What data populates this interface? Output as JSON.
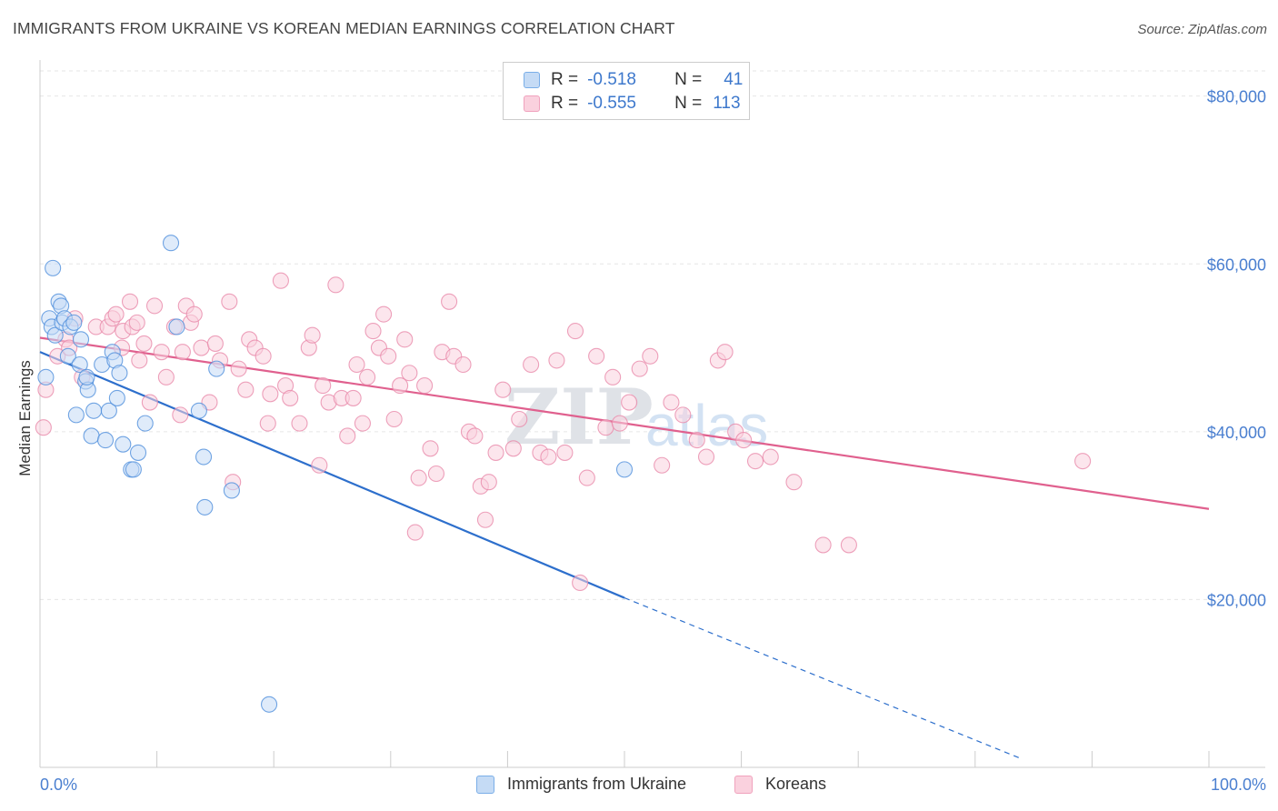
{
  "title": "IMMIGRANTS FROM UKRAINE VS KOREAN MEDIAN EARNINGS CORRELATION CHART",
  "source": "Source: ZipAtlas.com",
  "watermark": {
    "zip": "ZIP",
    "atlas": "atlas"
  },
  "legend": {
    "rows": [
      {
        "r_label": "R =",
        "r_value": "-0.518",
        "n_label": "N =",
        "n_value": "41",
        "color": "#7aaee8",
        "fill": "#c5dbf5"
      },
      {
        "r_label": "R =",
        "r_value": "-0.555",
        "n_label": "N =",
        "n_value": "113",
        "color": "#f0a2bd",
        "fill": "#fad1de"
      }
    ]
  },
  "bottom_legend": {
    "ukraine": "Immigrants from Ukraine",
    "koreans": "Koreans"
  },
  "chart_data": {
    "type": "scatter",
    "xlabel": "",
    "ylabel": "Median Earnings",
    "xlim": [
      0,
      100
    ],
    "ylim": [
      0,
      83000
    ],
    "x_tick_labels": [
      "0.0%",
      "100.0%"
    ],
    "y_ticks": [
      20000,
      40000,
      60000,
      80000
    ],
    "y_tick_labels": [
      "$20,000",
      "$40,000",
      "$60,000",
      "$80,000"
    ],
    "grid": true,
    "legend_position": "top-center",
    "series": [
      {
        "name": "Immigrants from Ukraine",
        "color": "#4f8fdc",
        "fill": "#c5dbf5",
        "trend": {
          "x0": 0,
          "y0": 49500,
          "x1": 50,
          "y1": 20200,
          "dash_to_x": 84,
          "dash_to_y": 1000,
          "color": "#2d6fcc"
        },
        "points": [
          [
            0.5,
            46500
          ],
          [
            0.8,
            53500
          ],
          [
            1.0,
            52500
          ],
          [
            1.1,
            59500
          ],
          [
            1.3,
            51500
          ],
          [
            1.6,
            55500
          ],
          [
            1.8,
            55000
          ],
          [
            1.9,
            53000
          ],
          [
            2.1,
            53500
          ],
          [
            2.4,
            49000
          ],
          [
            2.6,
            52500
          ],
          [
            2.9,
            53000
          ],
          [
            3.1,
            42000
          ],
          [
            3.4,
            48000
          ],
          [
            3.5,
            51000
          ],
          [
            3.9,
            46000
          ],
          [
            4.1,
            45000
          ],
          [
            4.4,
            39500
          ],
          [
            4.6,
            42500
          ],
          [
            5.3,
            48000
          ],
          [
            5.6,
            39000
          ],
          [
            5.9,
            42500
          ],
          [
            6.2,
            49500
          ],
          [
            6.4,
            48500
          ],
          [
            6.6,
            44000
          ],
          [
            6.8,
            47000
          ],
          [
            7.1,
            38500
          ],
          [
            7.8,
            35500
          ],
          [
            8.0,
            35500
          ],
          [
            8.4,
            37500
          ],
          [
            9.0,
            41000
          ],
          [
            11.2,
            62500
          ],
          [
            11.7,
            52500
          ],
          [
            13.6,
            42500
          ],
          [
            14.0,
            37000
          ],
          [
            14.1,
            31000
          ],
          [
            15.1,
            47500
          ],
          [
            16.4,
            33000
          ],
          [
            19.6,
            7500
          ],
          [
            50.0,
            35500
          ],
          [
            4.0,
            46500
          ]
        ]
      },
      {
        "name": "Koreans",
        "color": "#e88aaa",
        "fill": "#fad1de",
        "trend": {
          "x0": 0,
          "y0": 51200,
          "x1": 100,
          "y1": 30800,
          "color": "#e0608e"
        },
        "points": [
          [
            0.3,
            40500
          ],
          [
            0.5,
            45000
          ],
          [
            1.5,
            49000
          ],
          [
            2.2,
            51000
          ],
          [
            2.5,
            50000
          ],
          [
            3.0,
            53500
          ],
          [
            3.6,
            46500
          ],
          [
            4.8,
            52500
          ],
          [
            5.8,
            52500
          ],
          [
            6.2,
            53500
          ],
          [
            6.5,
            54000
          ],
          [
            7.0,
            50000
          ],
          [
            7.1,
            52000
          ],
          [
            7.7,
            55500
          ],
          [
            7.9,
            52500
          ],
          [
            8.3,
            53000
          ],
          [
            8.5,
            48500
          ],
          [
            8.9,
            50500
          ],
          [
            9.4,
            43500
          ],
          [
            9.8,
            55000
          ],
          [
            10.4,
            49500
          ],
          [
            10.8,
            46500
          ],
          [
            11.5,
            52500
          ],
          [
            12.0,
            42000
          ],
          [
            12.2,
            49500
          ],
          [
            12.5,
            55000
          ],
          [
            12.9,
            53000
          ],
          [
            13.2,
            54000
          ],
          [
            13.8,
            50000
          ],
          [
            14.5,
            43500
          ],
          [
            15.0,
            50500
          ],
          [
            15.4,
            48500
          ],
          [
            16.2,
            55500
          ],
          [
            16.5,
            34000
          ],
          [
            17.0,
            47500
          ],
          [
            17.6,
            45000
          ],
          [
            17.9,
            51000
          ],
          [
            18.4,
            50000
          ],
          [
            19.1,
            49000
          ],
          [
            19.5,
            41000
          ],
          [
            19.7,
            44500
          ],
          [
            20.6,
            58000
          ],
          [
            21.0,
            45500
          ],
          [
            21.4,
            44000
          ],
          [
            22.2,
            41000
          ],
          [
            23.0,
            50000
          ],
          [
            23.3,
            51500
          ],
          [
            23.9,
            36000
          ],
          [
            24.2,
            45500
          ],
          [
            24.7,
            43500
          ],
          [
            25.3,
            57500
          ],
          [
            25.8,
            44000
          ],
          [
            26.3,
            39500
          ],
          [
            26.8,
            44000
          ],
          [
            27.1,
            48000
          ],
          [
            27.6,
            41000
          ],
          [
            28.0,
            46500
          ],
          [
            28.5,
            52000
          ],
          [
            29.0,
            50000
          ],
          [
            29.4,
            54000
          ],
          [
            29.8,
            49000
          ],
          [
            30.3,
            41500
          ],
          [
            30.8,
            45500
          ],
          [
            31.2,
            51000
          ],
          [
            31.6,
            47000
          ],
          [
            32.1,
            28000
          ],
          [
            32.4,
            34500
          ],
          [
            32.9,
            45500
          ],
          [
            33.4,
            38000
          ],
          [
            33.9,
            35000
          ],
          [
            34.4,
            49500
          ],
          [
            35.0,
            55500
          ],
          [
            35.4,
            49000
          ],
          [
            36.2,
            48000
          ],
          [
            36.7,
            40000
          ],
          [
            37.2,
            39500
          ],
          [
            37.7,
            33500
          ],
          [
            38.1,
            29500
          ],
          [
            38.4,
            34000
          ],
          [
            39.0,
            37500
          ],
          [
            39.6,
            45000
          ],
          [
            40.5,
            38000
          ],
          [
            41.0,
            41500
          ],
          [
            42.0,
            48000
          ],
          [
            42.8,
            37500
          ],
          [
            43.5,
            37000
          ],
          [
            44.2,
            48500
          ],
          [
            44.9,
            37500
          ],
          [
            45.8,
            52000
          ],
          [
            46.2,
            22000
          ],
          [
            46.8,
            34500
          ],
          [
            47.6,
            49000
          ],
          [
            48.4,
            40500
          ],
          [
            49.0,
            46500
          ],
          [
            49.6,
            41000
          ],
          [
            50.4,
            43500
          ],
          [
            51.3,
            47500
          ],
          [
            52.2,
            49000
          ],
          [
            53.2,
            36000
          ],
          [
            54.0,
            43500
          ],
          [
            55.0,
            42000
          ],
          [
            56.2,
            39000
          ],
          [
            57.0,
            37000
          ],
          [
            58.0,
            48500
          ],
          [
            58.6,
            49500
          ],
          [
            59.5,
            40000
          ],
          [
            60.2,
            39000
          ],
          [
            61.2,
            36500
          ],
          [
            62.5,
            37000
          ],
          [
            64.5,
            34000
          ],
          [
            67.0,
            26500
          ],
          [
            69.2,
            26500
          ],
          [
            89.2,
            36500
          ]
        ]
      }
    ]
  }
}
